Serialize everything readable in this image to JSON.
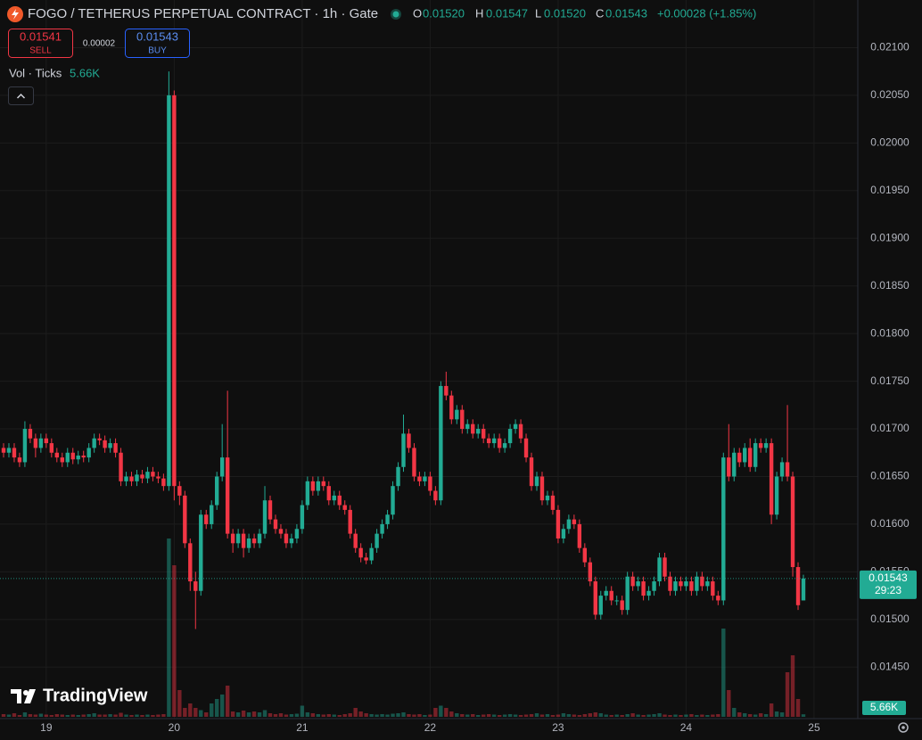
{
  "chart_data": {
    "type": "candlestick",
    "title": "FOGO / TETHERUS PERPETUAL CONTRACT · 1h · Gate",
    "legend": {
      "o_key": "O",
      "o": {
        "value": 0.0152,
        "label": "0.01520"
      },
      "h_key": "H",
      "h": 0.01547,
      "l_key": "L",
      "l": {
        "value": 0.0152,
        "label": "0.01520"
      },
      "c_key": "C",
      "c": 0.01543,
      "change": "+0.00028 (+1.85%)"
    },
    "sell": {
      "price": 0.01541,
      "label": "SELL"
    },
    "spread": 2e-05,
    "buy": {
      "price": 0.01543,
      "label": "BUY"
    },
    "volume_label": "Vol · Ticks",
    "volume_value": "5.66K",
    "volume_badge": "5.66K",
    "last_price": 0.01543,
    "countdown": "29:23",
    "brand": "TradingView",
    "up_color": "#22ab94",
    "down_color": "#f23645",
    "grid": true,
    "ylim": [
      0.01396,
      0.0215
    ],
    "yticks": [
      {
        "value": 0.021,
        "label": "0.02100"
      },
      {
        "value": 0.0205,
        "label": "0.02050"
      },
      {
        "value": 0.02,
        "label": "0.02000"
      },
      {
        "value": 0.0195,
        "label": "0.01950"
      },
      {
        "value": 0.019,
        "label": "0.01900"
      },
      {
        "value": 0.0185,
        "label": "0.01850"
      },
      {
        "value": 0.018,
        "label": "0.01800"
      },
      {
        "value": 0.0175,
        "label": "0.01750"
      },
      {
        "value": 0.017,
        "label": "0.01700"
      },
      {
        "value": 0.0165,
        "label": "0.01650"
      },
      {
        "value": 0.016,
        "label": "0.01600"
      },
      {
        "value": 0.0155,
        "label": "0.01550"
      },
      {
        "value": 0.015,
        "label": "0.01500"
      },
      {
        "value": 0.0145,
        "label": "0.01450"
      }
    ],
    "volume_lim": [
      0,
      460
    ],
    "categories": [
      null,
      null,
      null,
      null,
      null,
      null,
      null,
      null,
      "19",
      null,
      null,
      null,
      null,
      null,
      null,
      null,
      null,
      null,
      null,
      null,
      null,
      null,
      null,
      null,
      null,
      null,
      null,
      null,
      null,
      null,
      null,
      null,
      "20",
      null,
      null,
      null,
      null,
      null,
      null,
      null,
      null,
      null,
      null,
      null,
      null,
      null,
      null,
      null,
      null,
      null,
      null,
      null,
      null,
      null,
      null,
      null,
      "21",
      null,
      null,
      null,
      null,
      null,
      null,
      null,
      null,
      null,
      null,
      null,
      null,
      null,
      null,
      null,
      null,
      null,
      null,
      null,
      null,
      null,
      null,
      null,
      "22",
      null,
      null,
      null,
      null,
      null,
      null,
      null,
      null,
      null,
      null,
      null,
      null,
      null,
      null,
      null,
      null,
      null,
      null,
      null,
      null,
      null,
      null,
      null,
      "23",
      null,
      null,
      null,
      null,
      null,
      null,
      null,
      null,
      null,
      null,
      null,
      null,
      null,
      null,
      null,
      null,
      null,
      null,
      null,
      null,
      null,
      null,
      null,
      "24",
      null,
      null,
      null,
      null,
      null,
      null,
      null,
      null,
      null,
      null,
      null,
      null,
      null,
      null,
      null,
      null,
      null,
      null,
      null,
      null,
      null,
      null,
      null,
      "25"
    ],
    "open": [
      0.0168,
      0.01675,
      0.0168,
      0.0167,
      0.01665,
      0.017,
      0.0169,
      0.0168,
      0.0169,
      0.01685,
      0.01675,
      0.0167,
      0.01665,
      0.01675,
      0.01668,
      0.01672,
      0.0167,
      0.0168,
      0.0169,
      0.01688,
      0.0168,
      0.01685,
      0.01675,
      0.01645,
      0.0165,
      0.01645,
      0.01652,
      0.01648,
      0.01655,
      0.0165,
      0.01648,
      0.0164,
      0.0205,
      0.0164,
      0.0163,
      0.0158,
      0.0154,
      0.0153,
      0.0161,
      0.016,
      0.0162,
      0.0165,
      0.0167,
      0.0159,
      0.0158,
      0.0159,
      0.01575,
      0.01585,
      0.0158,
      0.0159,
      0.01625,
      0.01605,
      0.01595,
      0.0159,
      0.0158,
      0.01585,
      0.01595,
      0.0162,
      0.01645,
      0.01635,
      0.01645,
      0.0164,
      0.01625,
      0.0163,
      0.0162,
      0.01615,
      0.0159,
      0.01575,
      0.01565,
      0.01562,
      0.01575,
      0.0159,
      0.016,
      0.0161,
      0.0164,
      0.0166,
      0.01695,
      0.0168,
      0.0165,
      0.01645,
      0.0165,
      0.01635,
      0.01625,
      0.01745,
      0.01735,
      0.0171,
      0.0172,
      0.017,
      0.01705,
      0.01695,
      0.017,
      0.0169,
      0.01685,
      0.0169,
      0.0168,
      0.01685,
      0.017,
      0.01705,
      0.0169,
      0.0167,
      0.0164,
      0.0165,
      0.01625,
      0.0163,
      0.01615,
      0.01585,
      0.01595,
      0.01605,
      0.016,
      0.01575,
      0.0156,
      0.0154,
      0.01505,
      0.01525,
      0.0153,
      0.0152,
      0.0152,
      0.0151,
      0.01545,
      0.01535,
      0.0154,
      0.01525,
      0.0153,
      0.0154,
      0.01565,
      0.01545,
      0.0153,
      0.0154,
      0.01535,
      0.0154,
      0.0153,
      0.01545,
      0.01535,
      0.0154,
      0.01525,
      0.0152,
      0.0167,
      0.0165,
      0.01675,
      0.01665,
      0.0168,
      0.0166,
      0.01685,
      0.0168,
      0.01685,
      0.0161,
      0.0165,
      0.01665,
      0.0165,
      0.01555,
      0.0152,
      null,
      null
    ],
    "high": [
      0.01685,
      0.01685,
      0.01685,
      0.01675,
      0.01708,
      0.01705,
      0.01695,
      0.01695,
      0.01695,
      0.0169,
      0.0168,
      0.01675,
      0.0168,
      0.0168,
      0.01677,
      0.01677,
      0.01685,
      0.01695,
      0.01695,
      0.01693,
      0.0169,
      0.0169,
      0.0168,
      0.01655,
      0.01655,
      0.01657,
      0.01657,
      0.0166,
      0.0166,
      0.01655,
      0.01653,
      0.02075,
      0.02055,
      0.01645,
      0.01635,
      0.01585,
      0.0155,
      0.01615,
      0.01615,
      0.01625,
      0.01655,
      0.01705,
      0.0174,
      0.01595,
      0.01595,
      0.01595,
      0.0159,
      0.0159,
      0.01595,
      0.0164,
      0.0163,
      0.0161,
      0.016,
      0.01595,
      0.0159,
      0.016,
      0.01625,
      0.0165,
      0.0165,
      0.0165,
      0.0165,
      0.01645,
      0.01635,
      0.01635,
      0.01625,
      0.0162,
      0.01595,
      0.0158,
      0.0157,
      0.0158,
      0.01595,
      0.01605,
      0.01615,
      0.01645,
      0.01665,
      0.01715,
      0.017,
      0.01685,
      0.01655,
      0.01655,
      0.01655,
      0.0164,
      0.0175,
      0.0176,
      0.0174,
      0.01725,
      0.01725,
      0.0171,
      0.0171,
      0.01705,
      0.01705,
      0.01695,
      0.01695,
      0.01695,
      0.0169,
      0.01705,
      0.0171,
      0.0171,
      0.01695,
      0.01675,
      0.01655,
      0.01655,
      0.01635,
      0.01635,
      0.0162,
      0.016,
      0.0161,
      0.0161,
      0.01605,
      0.0158,
      0.01565,
      0.01545,
      0.0153,
      0.01535,
      0.01535,
      0.01525,
      0.01525,
      0.0155,
      0.0155,
      0.01545,
      0.01545,
      0.01535,
      0.01545,
      0.0157,
      0.0157,
      0.0155,
      0.01545,
      0.01545,
      0.01545,
      0.01545,
      0.0155,
      0.0155,
      0.01545,
      0.01545,
      0.0153,
      0.01675,
      0.01705,
      0.0168,
      0.0168,
      0.01685,
      0.0169,
      0.0169,
      0.0169,
      0.0169,
      0.0169,
      0.01655,
      0.0167,
      0.01725,
      0.01655,
      0.0156,
      0.01547,
      null,
      null
    ],
    "low": [
      0.0167,
      0.0167,
      0.01665,
      0.0166,
      0.0166,
      0.01685,
      0.0167,
      0.01675,
      0.0168,
      0.0167,
      0.01665,
      0.0166,
      0.0166,
      0.01663,
      0.01663,
      0.01665,
      0.01665,
      0.01675,
      0.01683,
      0.01675,
      0.01675,
      0.0167,
      0.0164,
      0.0164,
      0.0164,
      0.0164,
      0.01643,
      0.01643,
      0.01645,
      0.01643,
      0.01635,
      0.01635,
      0.01625,
      0.0162,
      0.01575,
      0.0153,
      0.0149,
      0.01525,
      0.01595,
      0.01595,
      0.01615,
      0.01645,
      0.01585,
      0.0157,
      0.01575,
      0.01565,
      0.0157,
      0.01575,
      0.01575,
      0.01585,
      0.016,
      0.0159,
      0.01585,
      0.01575,
      0.01575,
      0.0158,
      0.0159,
      0.01615,
      0.0163,
      0.0163,
      0.01635,
      0.0162,
      0.0162,
      0.01615,
      0.0161,
      0.01585,
      0.0157,
      0.0156,
      0.01558,
      0.01558,
      0.0157,
      0.01585,
      0.01595,
      0.01605,
      0.01635,
      0.01655,
      0.01675,
      0.01645,
      0.0164,
      0.0164,
      0.0163,
      0.0162,
      0.0162,
      0.0173,
      0.01705,
      0.01705,
      0.01695,
      0.01695,
      0.0169,
      0.0169,
      0.01685,
      0.0168,
      0.0168,
      0.01675,
      0.01675,
      0.0168,
      0.01695,
      0.01685,
      0.01665,
      0.01635,
      0.01635,
      0.0162,
      0.0162,
      0.0161,
      0.0158,
      0.0158,
      0.0159,
      0.01595,
      0.0157,
      0.01555,
      0.01535,
      0.015,
      0.015,
      0.0152,
      0.01515,
      0.01515,
      0.01505,
      0.01505,
      0.0153,
      0.0153,
      0.0152,
      0.0152,
      0.01525,
      0.01535,
      0.0154,
      0.01525,
      0.01525,
      0.0153,
      0.0153,
      0.01525,
      0.01525,
      0.0153,
      0.0153,
      0.0152,
      0.01515,
      0.01515,
      0.01645,
      0.01645,
      0.0166,
      0.0166,
      0.01655,
      0.01655,
      0.01675,
      0.01675,
      0.016,
      0.01605,
      0.01645,
      0.01645,
      0.01545,
      0.0151,
      0.0152,
      null,
      null
    ],
    "close": [
      0.01675,
      0.0168,
      0.0167,
      0.01665,
      0.017,
      0.0169,
      0.0168,
      0.0169,
      0.01685,
      0.01675,
      0.0167,
      0.01665,
      0.01675,
      0.01668,
      0.01672,
      0.0167,
      0.0168,
      0.0169,
      0.01688,
      0.0168,
      0.01685,
      0.01675,
      0.01645,
      0.0165,
      0.01645,
      0.01652,
      0.01648,
      0.01655,
      0.0165,
      0.01648,
      0.0164,
      0.0205,
      0.0164,
      0.0163,
      0.0158,
      0.0154,
      0.0153,
      0.0161,
      0.016,
      0.0162,
      0.0165,
      0.0167,
      0.0159,
      0.0158,
      0.0159,
      0.01575,
      0.01585,
      0.0158,
      0.0159,
      0.01625,
      0.01605,
      0.01595,
      0.0159,
      0.0158,
      0.01585,
      0.01595,
      0.0162,
      0.01645,
      0.01635,
      0.01645,
      0.0164,
      0.01625,
      0.0163,
      0.0162,
      0.01615,
      0.0159,
      0.01575,
      0.01565,
      0.01562,
      0.01575,
      0.0159,
      0.016,
      0.0161,
      0.0164,
      0.0166,
      0.01695,
      0.0168,
      0.0165,
      0.01645,
      0.0165,
      0.01635,
      0.01625,
      0.01745,
      0.01735,
      0.0171,
      0.0172,
      0.017,
      0.01705,
      0.01695,
      0.017,
      0.0169,
      0.01685,
      0.0169,
      0.0168,
      0.01685,
      0.017,
      0.01705,
      0.0169,
      0.0167,
      0.0164,
      0.0165,
      0.01625,
      0.0163,
      0.01615,
      0.01585,
      0.01595,
      0.01605,
      0.016,
      0.01575,
      0.0156,
      0.0154,
      0.01505,
      0.01525,
      0.0153,
      0.0152,
      0.0152,
      0.0151,
      0.01545,
      0.01535,
      0.0154,
      0.01525,
      0.0153,
      0.0154,
      0.01565,
      0.01545,
      0.0153,
      0.0154,
      0.01535,
      0.0154,
      0.0153,
      0.01545,
      0.01535,
      0.0154,
      0.01525,
      0.0152,
      0.0167,
      0.0165,
      0.01675,
      0.01665,
      0.0168,
      0.0166,
      0.01685,
      0.0168,
      0.01685,
      0.0161,
      0.0165,
      0.01665,
      0.0165,
      0.01555,
      0.01515,
      0.01543,
      null,
      null
    ],
    "volume": [
      6,
      5,
      8,
      4,
      10,
      6,
      5,
      7,
      5,
      4,
      6,
      5,
      4,
      5,
      4,
      5,
      6,
      8,
      5,
      5,
      6,
      5,
      9,
      5,
      4,
      5,
      4,
      5,
      4,
      5,
      6,
      400,
      340,
      60,
      20,
      30,
      20,
      15,
      10,
      30,
      40,
      50,
      70,
      12,
      10,
      14,
      10,
      12,
      10,
      15,
      8,
      6,
      8,
      5,
      6,
      7,
      25,
      10,
      8,
      6,
      5,
      6,
      5,
      4,
      6,
      8,
      20,
      12,
      8,
      6,
      5,
      6,
      5,
      7,
      8,
      10,
      6,
      5,
      6,
      4,
      5,
      20,
      25,
      20,
      12,
      8,
      6,
      5,
      6,
      4,
      5,
      6,
      5,
      4,
      5,
      6,
      5,
      4,
      5,
      6,
      8,
      5,
      6,
      4,
      5,
      8,
      6,
      5,
      4,
      6,
      8,
      10,
      8,
      5,
      4,
      5,
      4,
      6,
      8,
      5,
      4,
      5,
      6,
      8,
      5,
      4,
      5,
      4,
      5,
      6,
      4,
      5,
      4,
      5,
      6,
      198,
      60,
      20,
      10,
      8,
      6,
      5,
      8,
      6,
      30,
      12,
      10,
      100,
      138,
      40,
      5.66,
      null,
      null
    ]
  }
}
